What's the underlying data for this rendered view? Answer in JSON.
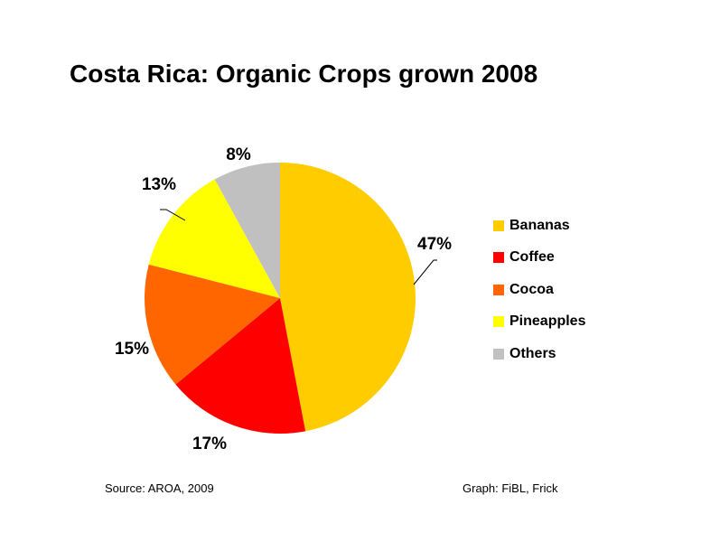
{
  "chart_data": {
    "type": "pie",
    "title": "Costa Rica: Organic Crops grown 2008",
    "slices": [
      {
        "label": "Bananas",
        "value": 47,
        "value_label": "47%",
        "color": "#FFCC00"
      },
      {
        "label": "Coffee",
        "value": 17,
        "value_label": "17%",
        "color": "#FF0000"
      },
      {
        "label": "Cocoa",
        "value": 15,
        "value_label": "15%",
        "color": "#FF6600"
      },
      {
        "label": "Pineapples",
        "value": 13,
        "value_label": "13%",
        "color": "#FFFF00"
      },
      {
        "label": "Others",
        "value": 8,
        "value_label": "8%",
        "color": "#C0C0C0"
      }
    ],
    "legend_position": "right"
  },
  "footer": {
    "source": "Source: AROA, 2009",
    "credit": "Graph: FiBL, Frick"
  }
}
